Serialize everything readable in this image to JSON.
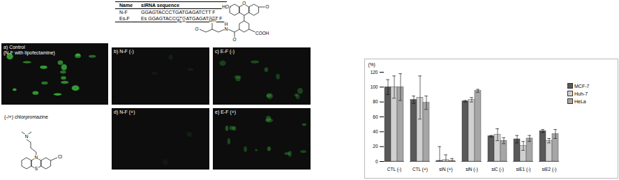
{
  "table": {
    "header": [
      "Name",
      "siRNA sequence"
    ],
    "rows": [
      [
        "N-F",
        "GGAGTACCCTGATGAGATCTT F"
      ],
      [
        "Es-F",
        "Es GGAGTACCCTGATGAGATCTT F"
      ]
    ]
  },
  "fluorescein": {
    "label": "F =",
    "atoms": [
      "HO",
      "O",
      "O",
      "OH",
      "O",
      "N",
      "H",
      "O",
      "COOH"
    ]
  },
  "panels": [
    {
      "label": [
        "a) Control",
        "(N-F with lipofectamine)"
      ]
    },
    {
      "label": [
        "b) N-F (-)"
      ]
    },
    {
      "label": [
        "c) E-F (-)"
      ]
    },
    {
      "label": [
        "d) N-F (+)"
      ]
    },
    {
      "label": [
        "e) E-F (+)"
      ]
    }
  ],
  "chlorpromazine": {
    "label": "(-/+) chlorpromazine",
    "atoms": [
      "N",
      "S",
      "N",
      "Cl"
    ]
  },
  "chart_data": {
    "type": "bar",
    "y_label": "(%)",
    "categories": [
      "CTL (-)",
      "CTL (+)",
      "siN (+)",
      "siN (-)",
      "siC (-)",
      "siE1 (-)",
      "siE2 (-)"
    ],
    "series": [
      {
        "name": "MCF-7",
        "color": "#595959",
        "values": [
          100,
          83,
          1,
          81,
          34,
          30,
          41
        ],
        "errors": [
          10,
          5,
          19,
          1,
          1,
          5,
          2
        ]
      },
      {
        "name": "Huh-7",
        "color": "#d0d0d0",
        "values": [
          100,
          86,
          2,
          83,
          36,
          21,
          28
        ],
        "errors": [
          15,
          29,
          7,
          3,
          8,
          6,
          3
        ]
      },
      {
        "name": "HeLa",
        "color": "#a6a6a6",
        "values": [
          100,
          79,
          1,
          95,
          28,
          31,
          37
        ],
        "errors": [
          18,
          9,
          3,
          2,
          4,
          4,
          6
        ]
      }
    ],
    "ylim": [
      0,
      120
    ],
    "yticks": [
      0,
      20,
      40,
      60,
      80,
      100,
      120
    ],
    "grid": false,
    "legend": "right"
  }
}
